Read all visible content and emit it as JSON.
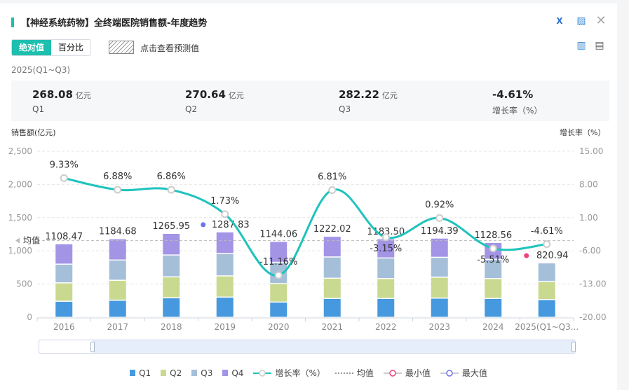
{
  "header": {
    "title": "【神经系统药物】全终端医院销售额-年度趋势",
    "icons": [
      "excel-export-icon",
      "image-export-icon",
      "close-icon",
      "bar-chart-icon",
      "table-icon"
    ]
  },
  "toggle": {
    "absolute": "绝对值",
    "percent": "百分比",
    "active": "绝对值"
  },
  "forecast_hint": "点击查看预测值",
  "period": "2025(Q1~Q3)",
  "stats": [
    {
      "value": "268.08",
      "unit": "亿元",
      "label": "Q1"
    },
    {
      "value": "270.64",
      "unit": "亿元",
      "label": "Q2"
    },
    {
      "value": "282.22",
      "unit": "亿元",
      "label": "Q3"
    },
    {
      "value": "-4.61%",
      "unit": "",
      "label": "增长率（%）"
    }
  ],
  "chart_data": {
    "type": "bar",
    "stacked": true,
    "ylabel": "销售额(亿元)",
    "y2label": "增长率（%）",
    "ylim": [
      0,
      2500
    ],
    "yticks": [
      "0",
      "500",
      "1,000",
      "1,500",
      "2,000",
      "2,500"
    ],
    "y2lim": [
      -20,
      15
    ],
    "y2ticks": [
      "-20.00",
      "-13.00",
      "-6.00",
      "1.00",
      "8.00",
      "15.00"
    ],
    "grid": true,
    "legend_position": "bottom",
    "categories": [
      "2016",
      "2017",
      "2018",
      "2019",
      "2020",
      "2021",
      "2022",
      "2023",
      "2024",
      "2025(Q1~Q3..."
    ],
    "series": [
      {
        "name": "Q1",
        "color": "#4699de",
        "values": [
          243,
          258,
          295,
          305,
          230,
          285,
          285,
          290,
          285,
          268.08
        ]
      },
      {
        "name": "Q2",
        "color": "#c9d98f",
        "values": [
          277,
          301,
          315,
          320,
          280,
          305,
          300,
          315,
          300,
          270.64
        ]
      },
      {
        "name": "Q3",
        "color": "#a5bfd9",
        "values": [
          282,
          305,
          330,
          335,
          320,
          320,
          310,
          300,
          290,
          282.22
        ]
      },
      {
        "name": "Q4",
        "color": "#a394e6",
        "values": [
          306.47,
          320.68,
          325.95,
          327.83,
          314.06,
          312.02,
          288.5,
          289.39,
          253.56,
          null
        ]
      }
    ],
    "totals": [
      "1108.47",
      "1184.68",
      "1265.95",
      "1287.83",
      "1144.06",
      "1222.02",
      "1183.50",
      "1194.39",
      "1128.56",
      "820.94"
    ],
    "growth": {
      "name": "增长率（%）",
      "color": "#1fc3bd",
      "values": [
        9.33,
        6.88,
        6.86,
        1.73,
        -11.16,
        6.81,
        -3.15,
        0.92,
        -5.51,
        -4.61
      ],
      "labels": [
        "9.33%",
        "6.88%",
        "6.86%",
        "1.73%",
        "-11.16%",
        "6.81%",
        "-3.15%",
        "0.92%",
        "-5.51%",
        "-4.61%"
      ]
    },
    "average": {
      "name": "均值",
      "label": "均值",
      "value": 1154.04
    },
    "min": {
      "name": "最小值",
      "color": "#f0407e",
      "index": 9
    },
    "max": {
      "name": "最大值",
      "color": "#6b74e8",
      "index": 3
    }
  },
  "legend": [
    "Q1",
    "Q2",
    "Q3",
    "Q4",
    "增长率（%）",
    "均值",
    "最小值",
    "最大值"
  ]
}
